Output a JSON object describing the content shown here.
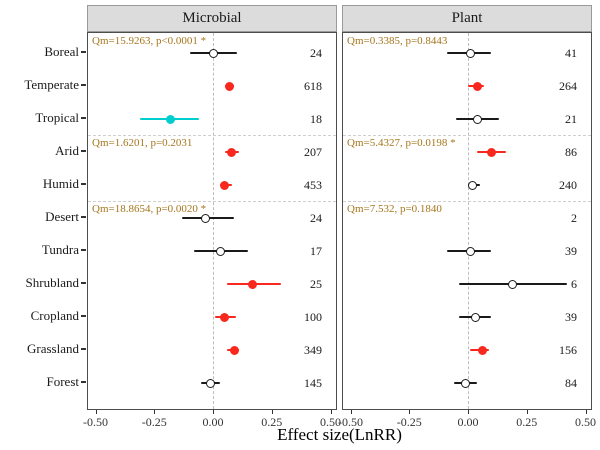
{
  "chart_data": {
    "type": "scatter",
    "subtype": "forest-plot",
    "xlabel": "Effect size(LnRR)",
    "categories": [
      "Boreal",
      "Temperate",
      "Tropical",
      "Arid",
      "Humid",
      "Desert",
      "Tundra",
      "Shrubland",
      "Cropland",
      "Grassland",
      "Forest"
    ],
    "group_breaks_after_rows": [
      2,
      4
    ],
    "x_axis": {
      "range": [
        -0.53,
        0.53
      ],
      "ticks": [
        -0.5,
        -0.25,
        0,
        0.25,
        0.5
      ],
      "tick_labels": [
        "-0.50",
        "-0.25",
        "0.00",
        "0.25",
        "0.50"
      ],
      "zero_reference_line": 0,
      "grid": "dashed-zero-line-only"
    },
    "legend": "none",
    "panels": [
      {
        "name": "Microbial",
        "annotations": [
          {
            "group_start_row": 0,
            "text": "Qm=15.9263, p<0.0001 *"
          },
          {
            "group_start_row": 3,
            "text": "Qm=1.6201, p=0.2031"
          },
          {
            "group_start_row": 5,
            "text": "Qm=18.8654, p=0.0020 *"
          }
        ],
        "points": [
          {
            "category": "Boreal",
            "estimate": 0.0,
            "ci_low": -0.1,
            "ci_high": 0.1,
            "style": "open",
            "n": 24
          },
          {
            "category": "Temperate",
            "estimate": 0.07,
            "ci_low": 0.05,
            "ci_high": 0.09,
            "style": "red",
            "n": 618
          },
          {
            "category": "Tropical",
            "estimate": -0.18,
            "ci_low": -0.31,
            "ci_high": -0.06,
            "style": "cyan",
            "n": 18
          },
          {
            "category": "Arid",
            "estimate": 0.08,
            "ci_low": 0.05,
            "ci_high": 0.11,
            "style": "red",
            "n": 207
          },
          {
            "category": "Humid",
            "estimate": 0.05,
            "ci_low": 0.03,
            "ci_high": 0.08,
            "style": "red",
            "n": 453
          },
          {
            "category": "Desert",
            "estimate": -0.03,
            "ci_low": -0.13,
            "ci_high": 0.09,
            "style": "open",
            "n": 24
          },
          {
            "category": "Tundra",
            "estimate": 0.03,
            "ci_low": -0.08,
            "ci_high": 0.15,
            "style": "open",
            "n": 17
          },
          {
            "category": "Shrubland",
            "estimate": 0.17,
            "ci_low": 0.06,
            "ci_high": 0.29,
            "style": "red",
            "n": 25
          },
          {
            "category": "Cropland",
            "estimate": 0.05,
            "ci_low": 0.01,
            "ci_high": 0.1,
            "style": "red",
            "n": 100
          },
          {
            "category": "Grassland",
            "estimate": 0.09,
            "ci_low": 0.06,
            "ci_high": 0.11,
            "style": "red",
            "n": 349
          },
          {
            "category": "Forest",
            "estimate": -0.01,
            "ci_low": -0.05,
            "ci_high": 0.03,
            "style": "open",
            "n": 145
          }
        ]
      },
      {
        "name": "Plant",
        "annotations": [
          {
            "group_start_row": 0,
            "text": "Qm=0.3385, p=0.8443"
          },
          {
            "group_start_row": 3,
            "text": "Qm=5.4327, p=0.0198 *"
          },
          {
            "group_start_row": 5,
            "text": "Qm=7.532, p=0.1840"
          }
        ],
        "points": [
          {
            "category": "Boreal",
            "estimate": 0.01,
            "ci_low": -0.09,
            "ci_high": 0.1,
            "style": "open",
            "n": 41
          },
          {
            "category": "Temperate",
            "estimate": 0.04,
            "ci_low": 0.0,
            "ci_high": 0.07,
            "style": "red",
            "n": 264
          },
          {
            "category": "Tropical",
            "estimate": 0.04,
            "ci_low": -0.05,
            "ci_high": 0.13,
            "style": "open",
            "n": 21
          },
          {
            "category": "Arid",
            "estimate": 0.1,
            "ci_low": 0.04,
            "ci_high": 0.16,
            "style": "red",
            "n": 86
          },
          {
            "category": "Humid",
            "estimate": 0.02,
            "ci_low": 0.0,
            "ci_high": 0.05,
            "style": "open",
            "n": 240
          },
          {
            "category": "Desert",
            "estimate": null,
            "ci_low": null,
            "ci_high": null,
            "style": "none",
            "n": 2
          },
          {
            "category": "Tundra",
            "estimate": 0.01,
            "ci_low": -0.09,
            "ci_high": 0.1,
            "style": "open",
            "n": 39
          },
          {
            "category": "Shrubland",
            "estimate": 0.19,
            "ci_low": -0.04,
            "ci_high": 0.42,
            "style": "open",
            "n": 6
          },
          {
            "category": "Cropland",
            "estimate": 0.03,
            "ci_low": -0.04,
            "ci_high": 0.1,
            "style": "open",
            "n": 39
          },
          {
            "category": "Grassland",
            "estimate": 0.06,
            "ci_low": 0.01,
            "ci_high": 0.09,
            "style": "red",
            "n": 156
          },
          {
            "category": "Forest",
            "estimate": -0.01,
            "ci_low": -0.06,
            "ci_high": 0.04,
            "style": "open",
            "n": 84
          }
        ]
      }
    ],
    "point_styles": {
      "open": {
        "fill": "#FFFFFF",
        "stroke": "#1A1A1A",
        "bar": "#1A1A1A"
      },
      "red": {
        "fill": "#F8281E",
        "stroke": "#F8281E",
        "bar": "#F8281E"
      },
      "cyan": {
        "fill": "#00CDCD",
        "stroke": "#00CDCD",
        "bar": "#00CDCD"
      }
    },
    "colors": {
      "annotation_text": "#A6761D",
      "header_background": "#DCDCDC",
      "header_border": "#9A9A9A",
      "panel_border": "#4D4D4D",
      "dashed_reference": "#BDBDBD",
      "axis_text": "#333333"
    }
  }
}
